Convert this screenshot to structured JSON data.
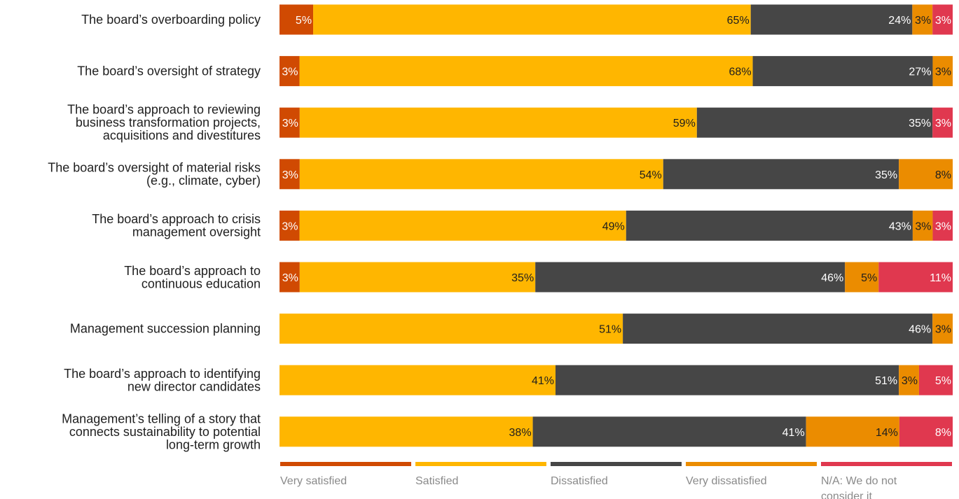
{
  "chart_data": {
    "type": "bar",
    "orientation": "horizontal",
    "stacked": true,
    "normalized": true,
    "categories": [
      [
        "The board’s overboarding policy"
      ],
      [
        "The board’s oversight of strategy"
      ],
      [
        "The board’s approach to reviewing",
        "business transformation projects,",
        "acquisitions and divestitures"
      ],
      [
        "The board’s oversight of material risks",
        "(e.g., climate, cyber)"
      ],
      [
        "The board’s approach to crisis",
        "management oversight"
      ],
      [
        "The board’s approach to",
        "continuous education"
      ],
      [
        "Management succession planning"
      ],
      [
        "The board’s approach to identifying",
        "new director candidates"
      ],
      [
        "Management’s telling of a story that",
        "connects sustainability to potential",
        "long-term growth"
      ]
    ],
    "series": [
      {
        "name": "Very satisfied",
        "color": "#d04a02",
        "label_color": "#ffffff",
        "values": [
          5,
          3,
          3,
          3,
          3,
          3,
          0,
          0,
          0
        ]
      },
      {
        "name": "Satisfied",
        "color": "#ffb600",
        "label_color": "#1e1e1e",
        "values": [
          65,
          68,
          59,
          54,
          49,
          35,
          51,
          41,
          38
        ]
      },
      {
        "name": "Dissatisfied",
        "color": "#464646",
        "label_color": "#ffffff",
        "values": [
          24,
          27,
          35,
          35,
          43,
          46,
          46,
          51,
          41
        ]
      },
      {
        "name": "Very dissatisfied",
        "color": "#eb8c00",
        "label_color": "#1e1e1e",
        "values": [
          3,
          3,
          0,
          8,
          3,
          5,
          3,
          3,
          14
        ]
      },
      {
        "name": "N/A: We do not consider it",
        "color": "#e0384f",
        "label_color": "#ffffff",
        "values": [
          3,
          0,
          3,
          0,
          3,
          11,
          0,
          5,
          8
        ]
      }
    ],
    "value_suffix": "%",
    "legend_position": "bottom",
    "legend_labels": [
      [
        "Very satisfied"
      ],
      [
        "Satisfied"
      ],
      [
        "Dissatisfied"
      ],
      [
        "Very dissatisfied"
      ],
      [
        "N/A: We do not",
        "consider it"
      ]
    ],
    "title": "",
    "xlabel": "",
    "ylabel": "",
    "grid": false
  }
}
